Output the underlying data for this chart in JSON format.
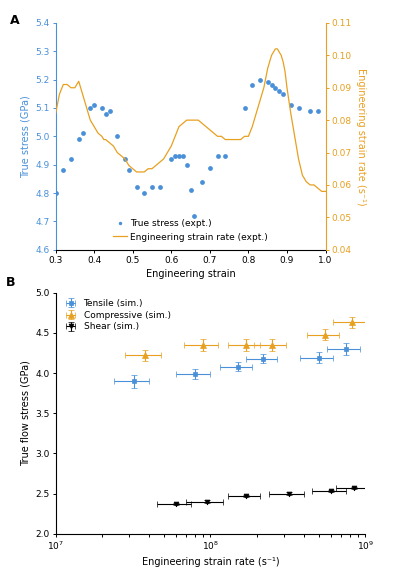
{
  "panel_A": {
    "xlabel": "Engineering strain",
    "ylabel_left": "True stress (GPa)",
    "ylabel_right": "Engineering strain rate (s⁻¹)",
    "xlim": [
      0.3,
      1.0
    ],
    "ylim_left": [
      4.6,
      5.4
    ],
    "ylim_right": [
      0.04,
      0.11
    ],
    "yticks_left": [
      4.6,
      4.7,
      4.8,
      4.9,
      5.0,
      5.1,
      5.2,
      5.3,
      5.4
    ],
    "yticks_right": [
      0.04,
      0.05,
      0.06,
      0.07,
      0.08,
      0.09,
      0.1,
      0.11
    ],
    "xticks": [
      0.3,
      0.4,
      0.5,
      0.6,
      0.7,
      0.8,
      0.9,
      1.0
    ],
    "scatter_color": "#4A90D9",
    "line_color": "#E8A020",
    "scatter_x": [
      0.3,
      0.32,
      0.34,
      0.36,
      0.37,
      0.39,
      0.4,
      0.42,
      0.43,
      0.44,
      0.46,
      0.48,
      0.49,
      0.51,
      0.53,
      0.55,
      0.57,
      0.6,
      0.61,
      0.62,
      0.63,
      0.64,
      0.65,
      0.66,
      0.68,
      0.7,
      0.72,
      0.74,
      0.79,
      0.81,
      0.83,
      0.85,
      0.86,
      0.87,
      0.88,
      0.89,
      0.91,
      0.93,
      0.96,
      0.98
    ],
    "scatter_y": [
      4.8,
      4.88,
      4.92,
      4.99,
      5.01,
      5.1,
      5.11,
      5.1,
      5.08,
      5.09,
      5.0,
      4.92,
      4.88,
      4.82,
      4.8,
      4.82,
      4.82,
      4.92,
      4.93,
      4.93,
      4.93,
      4.9,
      4.81,
      4.72,
      4.84,
      4.89,
      4.93,
      4.93,
      5.1,
      5.18,
      5.2,
      5.19,
      5.18,
      5.17,
      5.16,
      5.15,
      5.11,
      5.1,
      5.09,
      5.09
    ],
    "line_x": [
      0.3,
      0.31,
      0.32,
      0.33,
      0.34,
      0.35,
      0.355,
      0.36,
      0.365,
      0.37,
      0.375,
      0.38,
      0.39,
      0.4,
      0.41,
      0.42,
      0.425,
      0.43,
      0.44,
      0.45,
      0.46,
      0.47,
      0.48,
      0.49,
      0.5,
      0.51,
      0.52,
      0.53,
      0.54,
      0.55,
      0.56,
      0.57,
      0.58,
      0.59,
      0.6,
      0.61,
      0.62,
      0.63,
      0.64,
      0.65,
      0.66,
      0.67,
      0.68,
      0.69,
      0.7,
      0.71,
      0.72,
      0.73,
      0.74,
      0.75,
      0.76,
      0.77,
      0.78,
      0.79,
      0.8,
      0.81,
      0.82,
      0.83,
      0.84,
      0.845,
      0.85,
      0.855,
      0.86,
      0.865,
      0.87,
      0.875,
      0.88,
      0.885,
      0.89,
      0.895,
      0.9,
      0.91,
      0.92,
      0.93,
      0.94,
      0.95,
      0.96,
      0.97,
      0.98,
      0.99,
      1.0
    ],
    "line_y": [
      0.082,
      0.088,
      0.091,
      0.091,
      0.09,
      0.09,
      0.091,
      0.092,
      0.09,
      0.088,
      0.086,
      0.084,
      0.08,
      0.078,
      0.076,
      0.075,
      0.074,
      0.074,
      0.073,
      0.072,
      0.07,
      0.069,
      0.068,
      0.066,
      0.065,
      0.064,
      0.064,
      0.064,
      0.065,
      0.065,
      0.066,
      0.067,
      0.068,
      0.07,
      0.072,
      0.075,
      0.078,
      0.079,
      0.08,
      0.08,
      0.08,
      0.08,
      0.079,
      0.078,
      0.077,
      0.076,
      0.075,
      0.075,
      0.074,
      0.074,
      0.074,
      0.074,
      0.074,
      0.075,
      0.075,
      0.078,
      0.082,
      0.086,
      0.09,
      0.093,
      0.096,
      0.098,
      0.1,
      0.101,
      0.102,
      0.102,
      0.101,
      0.1,
      0.098,
      0.095,
      0.09,
      0.082,
      0.075,
      0.068,
      0.063,
      0.061,
      0.06,
      0.06,
      0.059,
      0.058,
      0.058
    ],
    "legend_scatter": "True stress (expt.)",
    "legend_line": "Engineering strain rate (expt.)"
  },
  "panel_B": {
    "xlabel": "Engineering strain rate (s⁻¹)",
    "ylabel": "True flow stress (GPa)",
    "ylim": [
      2.0,
      5.0
    ],
    "yticks": [
      2.0,
      2.5,
      3.0,
      3.5,
      4.0,
      4.5,
      5.0
    ],
    "tensile_color": "#4A90D9",
    "compressive_color": "#E8A020",
    "shear_color": "#000000",
    "tensile_x": [
      32000000.0,
      80000000.0,
      150000000.0,
      220000000.0,
      500000000.0,
      750000000.0
    ],
    "tensile_y": [
      3.9,
      3.99,
      4.08,
      4.18,
      4.19,
      4.3
    ],
    "tensile_yerr": [
      0.08,
      0.06,
      0.06,
      0.06,
      0.07,
      0.07
    ],
    "tensile_xerr_lo": [
      8000000.0,
      20000000.0,
      35000000.0,
      50000000.0,
      120000000.0,
      180000000.0
    ],
    "tensile_xerr_hi": [
      8000000.0,
      20000000.0,
      35000000.0,
      50000000.0,
      120000000.0,
      180000000.0
    ],
    "compressive_x": [
      38000000.0,
      90000000.0,
      170000000.0,
      250000000.0,
      550000000.0,
      820000000.0
    ],
    "compressive_y": [
      4.22,
      4.35,
      4.35,
      4.35,
      4.48,
      4.63
    ],
    "compressive_yerr": [
      0.07,
      0.08,
      0.07,
      0.07,
      0.07,
      0.07
    ],
    "compressive_xerr_lo": [
      10000000.0,
      22000000.0,
      40000000.0,
      60000000.0,
      130000000.0,
      200000000.0
    ],
    "compressive_xerr_hi": [
      10000000.0,
      22000000.0,
      40000000.0,
      60000000.0,
      130000000.0,
      200000000.0
    ],
    "shear_x": [
      60000000.0,
      95000000.0,
      170000000.0,
      320000000.0,
      600000000.0,
      850000000.0
    ],
    "shear_y": [
      2.37,
      2.4,
      2.47,
      2.5,
      2.53,
      2.57
    ],
    "shear_yerr": [
      0.015,
      0.015,
      0.015,
      0.015,
      0.015,
      0.015
    ],
    "shear_xerr_lo": [
      15000000.0,
      25000000.0,
      40000000.0,
      80000000.0,
      150000000.0,
      200000000.0
    ],
    "shear_xerr_hi": [
      15000000.0,
      25000000.0,
      40000000.0,
      80000000.0,
      150000000.0,
      200000000.0
    ],
    "legend_tensile": "Tensile (sim.)",
    "legend_compressive": "Compressive (sim.)",
    "legend_shear": "Shear (sim.)"
  },
  "bg_color": "#FFFFFF",
  "label_fontsize": 7,
  "tick_fontsize": 6.5,
  "legend_fontsize": 6.5
}
